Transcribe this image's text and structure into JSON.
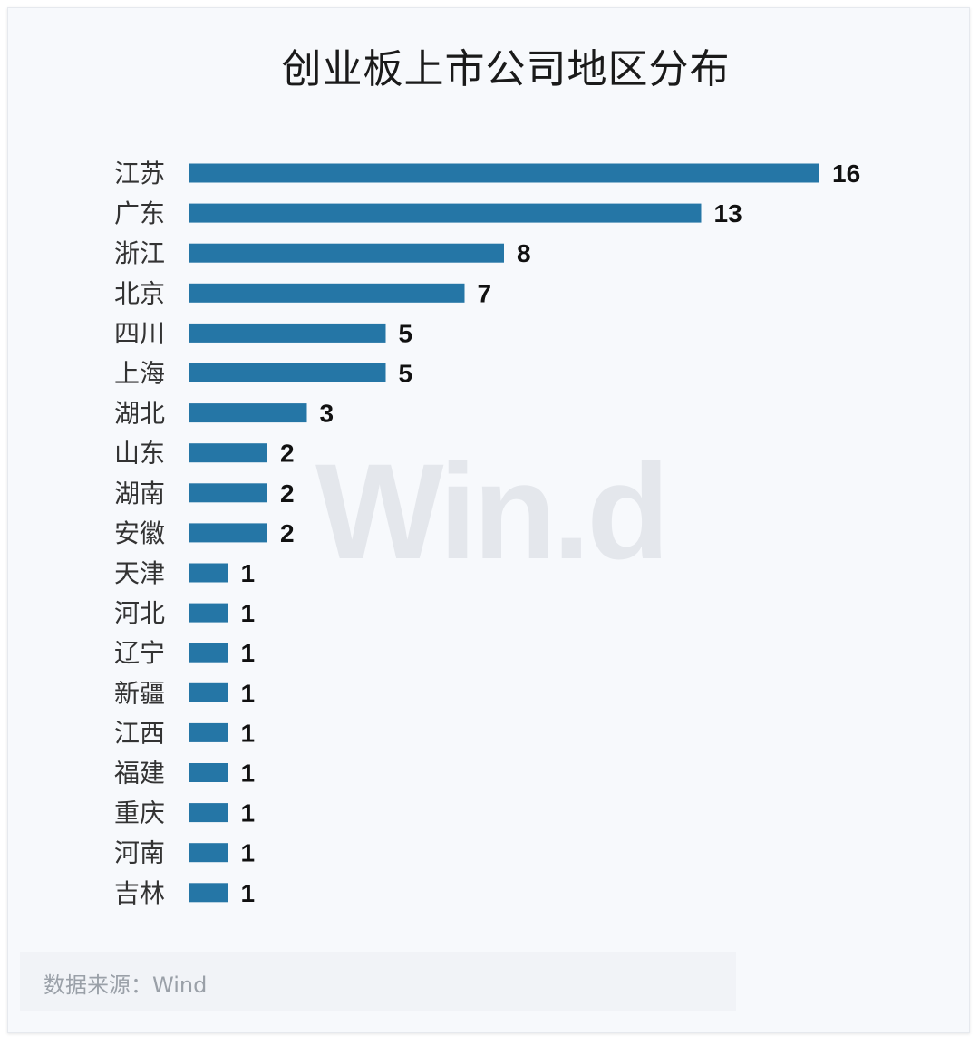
{
  "chart_data": {
    "type": "bar",
    "orientation": "horizontal",
    "title": "创业板上市公司地区分布",
    "categories": [
      "江苏",
      "广东",
      "浙江",
      "北京",
      "四川",
      "上海",
      "湖北",
      "山东",
      "湖南",
      "安徽",
      "天津",
      "河北",
      "辽宁",
      "新疆",
      "江西",
      "福建",
      "重庆",
      "河南",
      "吉林"
    ],
    "values": [
      16,
      13,
      8,
      7,
      5,
      5,
      3,
      2,
      2,
      2,
      1,
      1,
      1,
      1,
      1,
      1,
      1,
      1,
      1
    ],
    "bar_color": "#2576a6",
    "data_labels": true,
    "grid": false,
    "legend": "none"
  },
  "watermark": "Win.d",
  "source": "数据来源：Wind"
}
